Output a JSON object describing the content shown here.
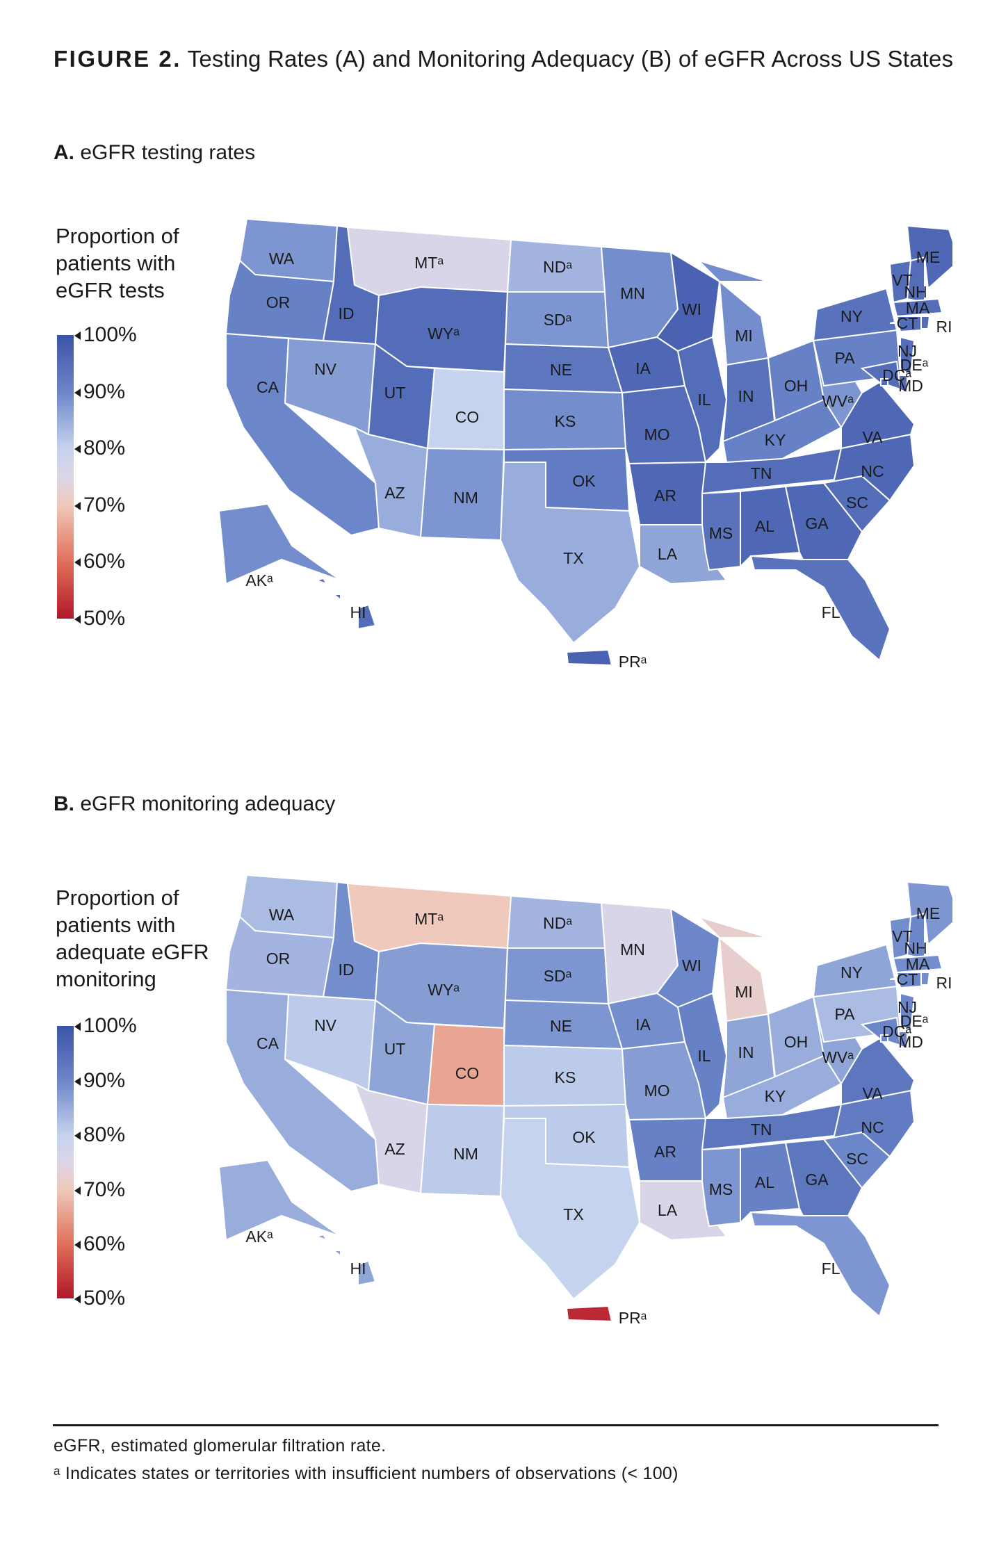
{
  "figure": {
    "label": "FIGURE 2.",
    "title": "Testing Rates (A) and Monitoring Adequacy (B) of eGFR Across US States"
  },
  "scale": {
    "ticks": [
      "100%",
      "90%",
      "80%",
      "70%",
      "60%",
      "50%"
    ],
    "colors": [
      "#3b54a8",
      "#6b86c9",
      "#c6d3ee",
      "#efc9bb",
      "#e0705a",
      "#b0172a"
    ]
  },
  "panels": [
    {
      "label": "A.",
      "title": "eGFR testing rates",
      "legend_title": [
        "Proportion of",
        "patients with",
        "eGFR tests"
      ]
    },
    {
      "label": "B.",
      "title": "eGFR monitoring adequacy",
      "legend_title": [
        "Proportion of",
        "patients with",
        "adequate eGFR",
        "monitoring"
      ]
    }
  ],
  "map_data": {
    "type": "choropleth",
    "unit": "%",
    "range": [
      50,
      100
    ],
    "regions": [
      {
        "code": "WA",
        "label": "WA",
        "a": 88,
        "b": 83
      },
      {
        "code": "OR",
        "label": "OR",
        "a": 91,
        "b": 84
      },
      {
        "code": "CA",
        "label": "CA",
        "a": 90,
        "b": 85
      },
      {
        "code": "ID",
        "label": "ID",
        "a": 95,
        "b": 89
      },
      {
        "code": "NV",
        "label": "NV",
        "a": 87,
        "b": 81
      },
      {
        "code": "MT",
        "label": "MTᵃ",
        "a": 76,
        "b": 70
      },
      {
        "code": "WY",
        "label": "WYᵃ",
        "a": 95,
        "b": 87
      },
      {
        "code": "UT",
        "label": "UT",
        "a": 95,
        "b": 86
      },
      {
        "code": "AZ",
        "label": "AZ",
        "a": 85,
        "b": 76
      },
      {
        "code": "CO",
        "label": "CO",
        "a": 80,
        "b": 66
      },
      {
        "code": "NM",
        "label": "NM",
        "a": 88,
        "b": 81
      },
      {
        "code": "ND",
        "label": "NDᵃ",
        "a": 84,
        "b": 84
      },
      {
        "code": "SD",
        "label": "SDᵃ",
        "a": 88,
        "b": 88
      },
      {
        "code": "NE",
        "label": "NE",
        "a": 93,
        "b": 88
      },
      {
        "code": "KS",
        "label": "KS",
        "a": 89,
        "b": 81
      },
      {
        "code": "OK",
        "label": "OK",
        "a": 92,
        "b": 81
      },
      {
        "code": "TX",
        "label": "TX",
        "a": 85,
        "b": 80
      },
      {
        "code": "MN",
        "label": "MN",
        "a": 89,
        "b": 76
      },
      {
        "code": "IA",
        "label": "IA",
        "a": 96,
        "b": 89
      },
      {
        "code": "MO",
        "label": "MO",
        "a": 95,
        "b": 87
      },
      {
        "code": "AR",
        "label": "AR",
        "a": 96,
        "b": 91
      },
      {
        "code": "LA",
        "label": "LA",
        "a": 86,
        "b": 76
      },
      {
        "code": "WI",
        "label": "WI",
        "a": 97,
        "b": 90
      },
      {
        "code": "IL",
        "label": "IL",
        "a": 95,
        "b": 91
      },
      {
        "code": "MI",
        "label": "MI",
        "a": 89,
        "b": 72
      },
      {
        "code": "IN",
        "label": "IN",
        "a": 94,
        "b": 86
      },
      {
        "code": "OH",
        "label": "OH",
        "a": 91,
        "b": 85
      },
      {
        "code": "KY",
        "label": "KY",
        "a": 91,
        "b": 85
      },
      {
        "code": "TN",
        "label": "TN",
        "a": 95,
        "b": 93
      },
      {
        "code": "MS",
        "label": "MS",
        "a": 94,
        "b": 88
      },
      {
        "code": "AL",
        "label": "AL",
        "a": 96,
        "b": 91
      },
      {
        "code": "GA",
        "label": "GA",
        "a": 96,
        "b": 93
      },
      {
        "code": "FL",
        "label": "FL",
        "a": 94,
        "b": 88
      },
      {
        "code": "SC",
        "label": "SC",
        "a": 95,
        "b": 90
      },
      {
        "code": "NC",
        "label": "NC",
        "a": 96,
        "b": 92
      },
      {
        "code": "VA",
        "label": "VA",
        "a": 96,
        "b": 93
      },
      {
        "code": "WV",
        "label": "WVᵃ",
        "a": 88,
        "b": 86
      },
      {
        "code": "PA",
        "label": "PA",
        "a": 91,
        "b": 83
      },
      {
        "code": "NY",
        "label": "NY",
        "a": 94,
        "b": 86
      },
      {
        "code": "VT",
        "label": "VT",
        "a": 95,
        "b": 89
      },
      {
        "code": "NH",
        "label": "NH",
        "a": 95,
        "b": 90
      },
      {
        "code": "ME",
        "label": "ME",
        "a": 96,
        "b": 88
      },
      {
        "code": "MA",
        "label": "MA",
        "a": 95,
        "b": 89
      },
      {
        "code": "CT",
        "label": "CT",
        "a": 95,
        "b": 90
      },
      {
        "code": "RI",
        "label": "RI",
        "a": 95,
        "b": 89
      },
      {
        "code": "NJ",
        "label": "NJ",
        "a": 95,
        "b": 90
      },
      {
        "code": "DE",
        "label": "DEᵃ",
        "a": 95,
        "b": 90
      },
      {
        "code": "MD",
        "label": "MD",
        "a": 95,
        "b": 90
      },
      {
        "code": "DC",
        "label": "DCᵃ",
        "a": 95,
        "b": 90
      },
      {
        "code": "AK",
        "label": "AKᵃ",
        "a": 89,
        "b": 85
      },
      {
        "code": "HI",
        "label": "HI",
        "a": 95,
        "b": 86
      },
      {
        "code": "PR",
        "label": "PRᵃ",
        "a": 97,
        "b": 52
      }
    ]
  },
  "footnotes": [
    "eGFR, estimated glomerular filtration rate.",
    "ᵃ Indicates states or territories with insufficient numbers of observations (< 100)"
  ]
}
